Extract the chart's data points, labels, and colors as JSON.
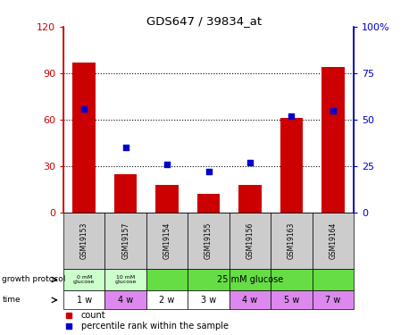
{
  "title": "GDS647 / 39834_at",
  "samples": [
    "GSM19153",
    "GSM19157",
    "GSM19154",
    "GSM19155",
    "GSM19156",
    "GSM19163",
    "GSM19164"
  ],
  "bar_values": [
    97,
    25,
    18,
    12,
    18,
    61,
    94
  ],
  "dot_values": [
    56,
    35,
    26,
    22,
    27,
    52,
    55
  ],
  "bar_color": "#cc0000",
  "dot_color": "#0000cc",
  "left_ylim": [
    0,
    120
  ],
  "right_ylim": [
    0,
    100
  ],
  "left_yticks": [
    0,
    30,
    60,
    90,
    120
  ],
  "right_yticks": [
    0,
    25,
    50,
    75,
    100
  ],
  "right_yticklabels": [
    "0",
    "25",
    "50",
    "75",
    "100%"
  ],
  "dotted_lines": [
    30,
    60,
    90
  ],
  "gp_colors": [
    "#ccffcc",
    "#ccffcc",
    "#66dd44",
    "#66dd44",
    "#66dd44",
    "#66dd44",
    "#66dd44"
  ],
  "time_labels": [
    "1 w",
    "4 w",
    "2 w",
    "3 w",
    "4 w",
    "5 w",
    "7 w"
  ],
  "time_colors": [
    "#ffffff",
    "#dd88ee",
    "#ffffff",
    "#ffffff",
    "#dd88ee",
    "#dd88ee",
    "#dd88ee"
  ],
  "sample_bg": "#cccccc",
  "left_axis_color": "#cc0000",
  "right_axis_color": "#0000cc"
}
